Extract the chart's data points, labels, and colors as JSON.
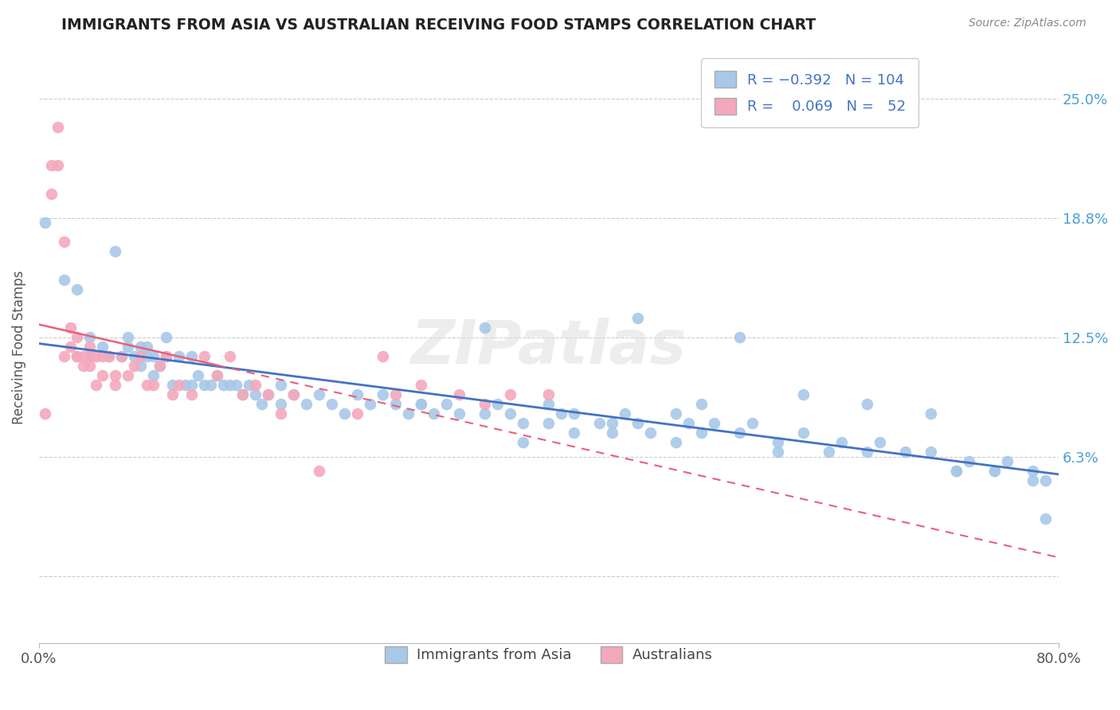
{
  "title": "IMMIGRANTS FROM ASIA VS AUSTRALIAN RECEIVING FOOD STAMPS CORRELATION CHART",
  "source": "Source: ZipAtlas.com",
  "ylabel": "Receiving Food Stamps",
  "yticks": [
    0.0,
    0.0625,
    0.125,
    0.1875,
    0.25
  ],
  "ytick_labels": [
    "",
    "6.3%",
    "12.5%",
    "18.8%",
    "25.0%"
  ],
  "xmin": 0.0,
  "xmax": 0.8,
  "ymin": -0.035,
  "ymax": 0.275,
  "blue_R": -0.392,
  "blue_N": 104,
  "pink_R": 0.069,
  "pink_N": 52,
  "blue_color": "#a8c8e8",
  "pink_color": "#f4a8bc",
  "blue_line_color": "#4472c4",
  "pink_line_color": "#e8607a",
  "legend_label_blue": "Immigrants from Asia",
  "legend_label_pink": "Australians",
  "blue_x": [
    0.005,
    0.02,
    0.03,
    0.04,
    0.04,
    0.05,
    0.055,
    0.06,
    0.065,
    0.07,
    0.07,
    0.075,
    0.08,
    0.08,
    0.085,
    0.085,
    0.09,
    0.09,
    0.095,
    0.1,
    0.1,
    0.105,
    0.11,
    0.115,
    0.12,
    0.12,
    0.125,
    0.13,
    0.135,
    0.14,
    0.145,
    0.15,
    0.155,
    0.16,
    0.165,
    0.17,
    0.175,
    0.18,
    0.19,
    0.19,
    0.2,
    0.21,
    0.22,
    0.23,
    0.24,
    0.25,
    0.26,
    0.27,
    0.28,
    0.29,
    0.3,
    0.31,
    0.32,
    0.33,
    0.35,
    0.36,
    0.37,
    0.38,
    0.4,
    0.41,
    0.42,
    0.44,
    0.45,
    0.46,
    0.47,
    0.48,
    0.5,
    0.51,
    0.52,
    0.53,
    0.55,
    0.56,
    0.58,
    0.6,
    0.62,
    0.63,
    0.65,
    0.66,
    0.68,
    0.7,
    0.72,
    0.73,
    0.75,
    0.76,
    0.78,
    0.79,
    0.3,
    0.35,
    0.47,
    0.55,
    0.52,
    0.6,
    0.65,
    0.7,
    0.72,
    0.75,
    0.78,
    0.79,
    0.5,
    0.45,
    0.4,
    0.58,
    0.38,
    0.42
  ],
  "blue_y": [
    0.185,
    0.155,
    0.15,
    0.125,
    0.115,
    0.12,
    0.115,
    0.17,
    0.115,
    0.125,
    0.12,
    0.115,
    0.12,
    0.11,
    0.12,
    0.115,
    0.115,
    0.105,
    0.11,
    0.125,
    0.115,
    0.1,
    0.115,
    0.1,
    0.115,
    0.1,
    0.105,
    0.1,
    0.1,
    0.105,
    0.1,
    0.1,
    0.1,
    0.095,
    0.1,
    0.095,
    0.09,
    0.095,
    0.1,
    0.09,
    0.095,
    0.09,
    0.095,
    0.09,
    0.085,
    0.095,
    0.09,
    0.095,
    0.09,
    0.085,
    0.09,
    0.085,
    0.09,
    0.085,
    0.085,
    0.09,
    0.085,
    0.08,
    0.09,
    0.085,
    0.085,
    0.08,
    0.08,
    0.085,
    0.08,
    0.075,
    0.085,
    0.08,
    0.075,
    0.08,
    0.075,
    0.08,
    0.07,
    0.075,
    0.065,
    0.07,
    0.065,
    0.07,
    0.065,
    0.065,
    0.055,
    0.06,
    0.055,
    0.06,
    0.055,
    0.05,
    0.09,
    0.13,
    0.135,
    0.125,
    0.09,
    0.095,
    0.09,
    0.085,
    0.055,
    0.055,
    0.05,
    0.03,
    0.07,
    0.075,
    0.08,
    0.065,
    0.07,
    0.075
  ],
  "pink_x": [
    0.005,
    0.01,
    0.01,
    0.015,
    0.015,
    0.02,
    0.02,
    0.025,
    0.025,
    0.03,
    0.03,
    0.03,
    0.035,
    0.035,
    0.04,
    0.04,
    0.04,
    0.045,
    0.045,
    0.05,
    0.05,
    0.055,
    0.06,
    0.06,
    0.065,
    0.07,
    0.075,
    0.08,
    0.085,
    0.09,
    0.095,
    0.1,
    0.105,
    0.11,
    0.12,
    0.13,
    0.14,
    0.15,
    0.16,
    0.17,
    0.18,
    0.19,
    0.2,
    0.22,
    0.25,
    0.27,
    0.28,
    0.3,
    0.33,
    0.35,
    0.37,
    0.4
  ],
  "pink_y": [
    0.085,
    0.215,
    0.2,
    0.235,
    0.215,
    0.115,
    0.175,
    0.13,
    0.12,
    0.115,
    0.125,
    0.115,
    0.11,
    0.115,
    0.115,
    0.12,
    0.11,
    0.115,
    0.1,
    0.105,
    0.115,
    0.115,
    0.105,
    0.1,
    0.115,
    0.105,
    0.11,
    0.115,
    0.1,
    0.1,
    0.11,
    0.115,
    0.095,
    0.1,
    0.095,
    0.115,
    0.105,
    0.115,
    0.095,
    0.1,
    0.095,
    0.085,
    0.095,
    0.055,
    0.085,
    0.115,
    0.095,
    0.1,
    0.095,
    0.09,
    0.095,
    0.095
  ]
}
